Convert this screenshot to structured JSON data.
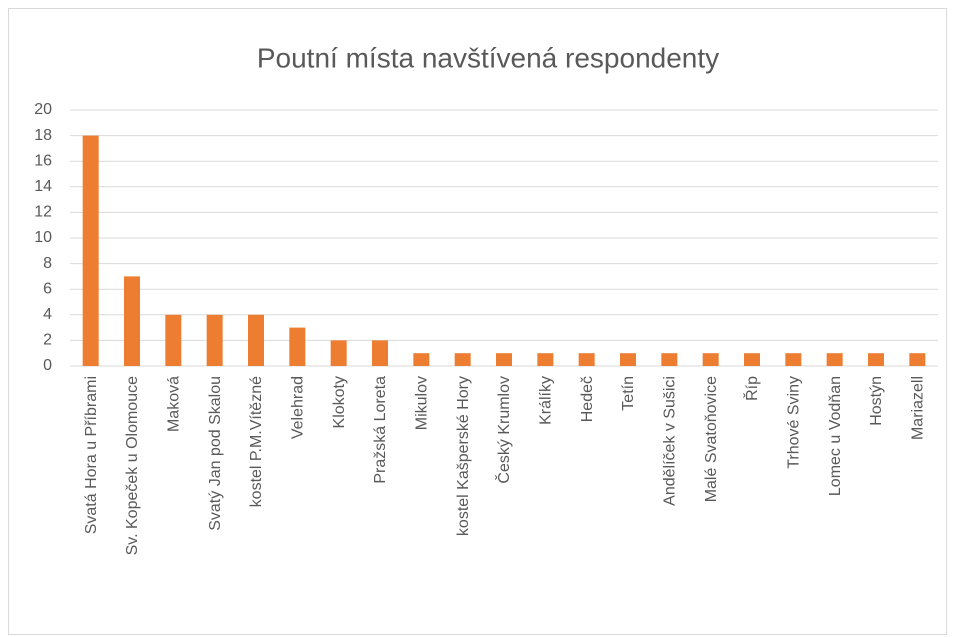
{
  "chart_data": {
    "type": "bar",
    "title": "Poutní místa navštívená respondenty",
    "categories": [
      "Svatá Hora u Příbrami",
      "Sv. Kopeček u Olomouce",
      "Maková",
      "Svatý Jan pod Skalou",
      "kostel P.M.Vítězné",
      "Velehrad",
      "Klokoty",
      "Pražská Loreta",
      "Mikulov",
      "kostel Kašperské Hory",
      "Český Krumlov",
      "Králíky",
      "Hedeč",
      "Tetín",
      "Andělíček v Sušici",
      "Malé Svatoňovice",
      "Říp",
      "Trhové Sviny",
      "Lomec u Vodňan",
      "Hostýn",
      "Mariazell"
    ],
    "values": [
      18,
      7,
      4,
      4,
      4,
      3,
      2,
      2,
      1,
      1,
      1,
      1,
      1,
      1,
      1,
      1,
      1,
      1,
      1,
      1,
      1
    ],
    "color": "#ed7d31",
    "ylim": [
      0,
      20
    ],
    "yticks": [
      0,
      2,
      4,
      6,
      8,
      10,
      12,
      14,
      16,
      18,
      20
    ],
    "grid": true
  }
}
